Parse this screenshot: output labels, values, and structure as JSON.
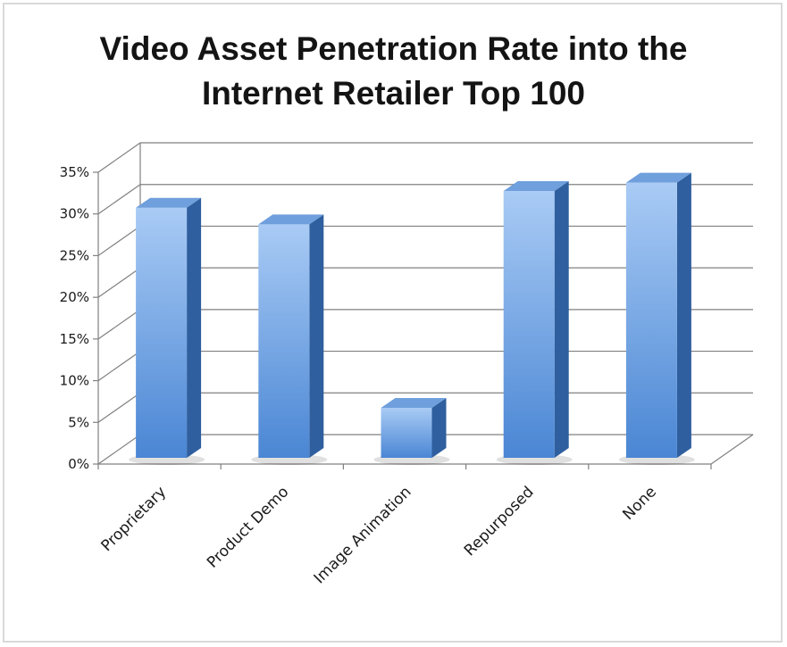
{
  "chart_data": {
    "type": "bar",
    "title": "Video Asset Penetration Rate into the\nInternet Retailer Top 100",
    "categories": [
      "Proprietary",
      "Product Demo",
      "Image Animation",
      "Repurposed",
      "None"
    ],
    "series": [
      {
        "values": [
          30,
          28,
          6,
          32,
          33
        ]
      }
    ],
    "ylim": [
      0,
      35
    ],
    "yticks": [
      "0%",
      "5%",
      "10%",
      "15%",
      "20%",
      "25%",
      "30%",
      "35%"
    ],
    "grid": true,
    "legend": "none",
    "style": "3d-column",
    "colors": {
      "bar_light": "#a9cbf5",
      "bar_dark": "#4a86d4",
      "bar_side": "#2f5f9e",
      "bar_top": "#6f9fdc",
      "grid": "#808080"
    }
  }
}
